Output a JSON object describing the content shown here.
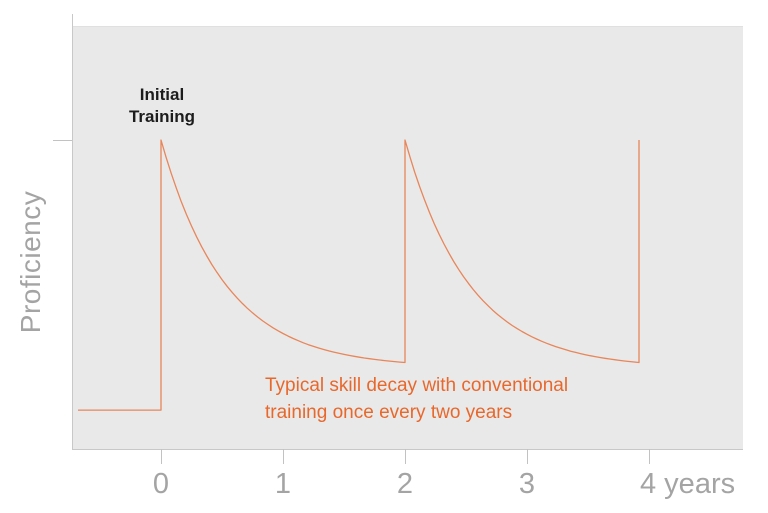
{
  "chart_data": {
    "type": "line",
    "title": "",
    "ylabel": "Proficiency",
    "x_axis_unit": "years",
    "x_ticks_years": [
      0,
      1,
      2,
      3,
      4
    ],
    "x_tick_labels": [
      "0",
      "1",
      "2",
      "3",
      "4 years"
    ],
    "y_axis": {
      "label": "Proficiency",
      "range": [
        0,
        1
      ],
      "tick_at_level": 1.0,
      "numeric_ticks_shown": false
    },
    "grid": false,
    "legend": false,
    "series": [
      {
        "name": "typical-skill-decay",
        "description": "Proficiency jumps to peak at each training event, then decays exponentially until retraining",
        "pre_training_level": 0.126,
        "pre_training_start_year": -0.68,
        "peak_level": 1.0,
        "decay_end_level": 0.28,
        "decay_rate_per_year": 1.9,
        "training_event_years": [
          0,
          2,
          3.918
        ]
      }
    ],
    "annotations": {
      "initial_training": "Initial\nTraining",
      "decay_note": "Typical skill decay with conventional\ntraining once every two years"
    },
    "colors": {
      "curve": "#e8865a",
      "annotation": "#e8682c",
      "axis": "#c8c8c8",
      "tick": "#c2c2c2",
      "labels": "#a4a4a4",
      "plot_bg": "#e9e9e9",
      "initial_training_text": "#1c1c1c"
    },
    "layout_hints": {
      "legend_position": "none",
      "plot_background": "light-gray",
      "outer_background": "white"
    }
  }
}
